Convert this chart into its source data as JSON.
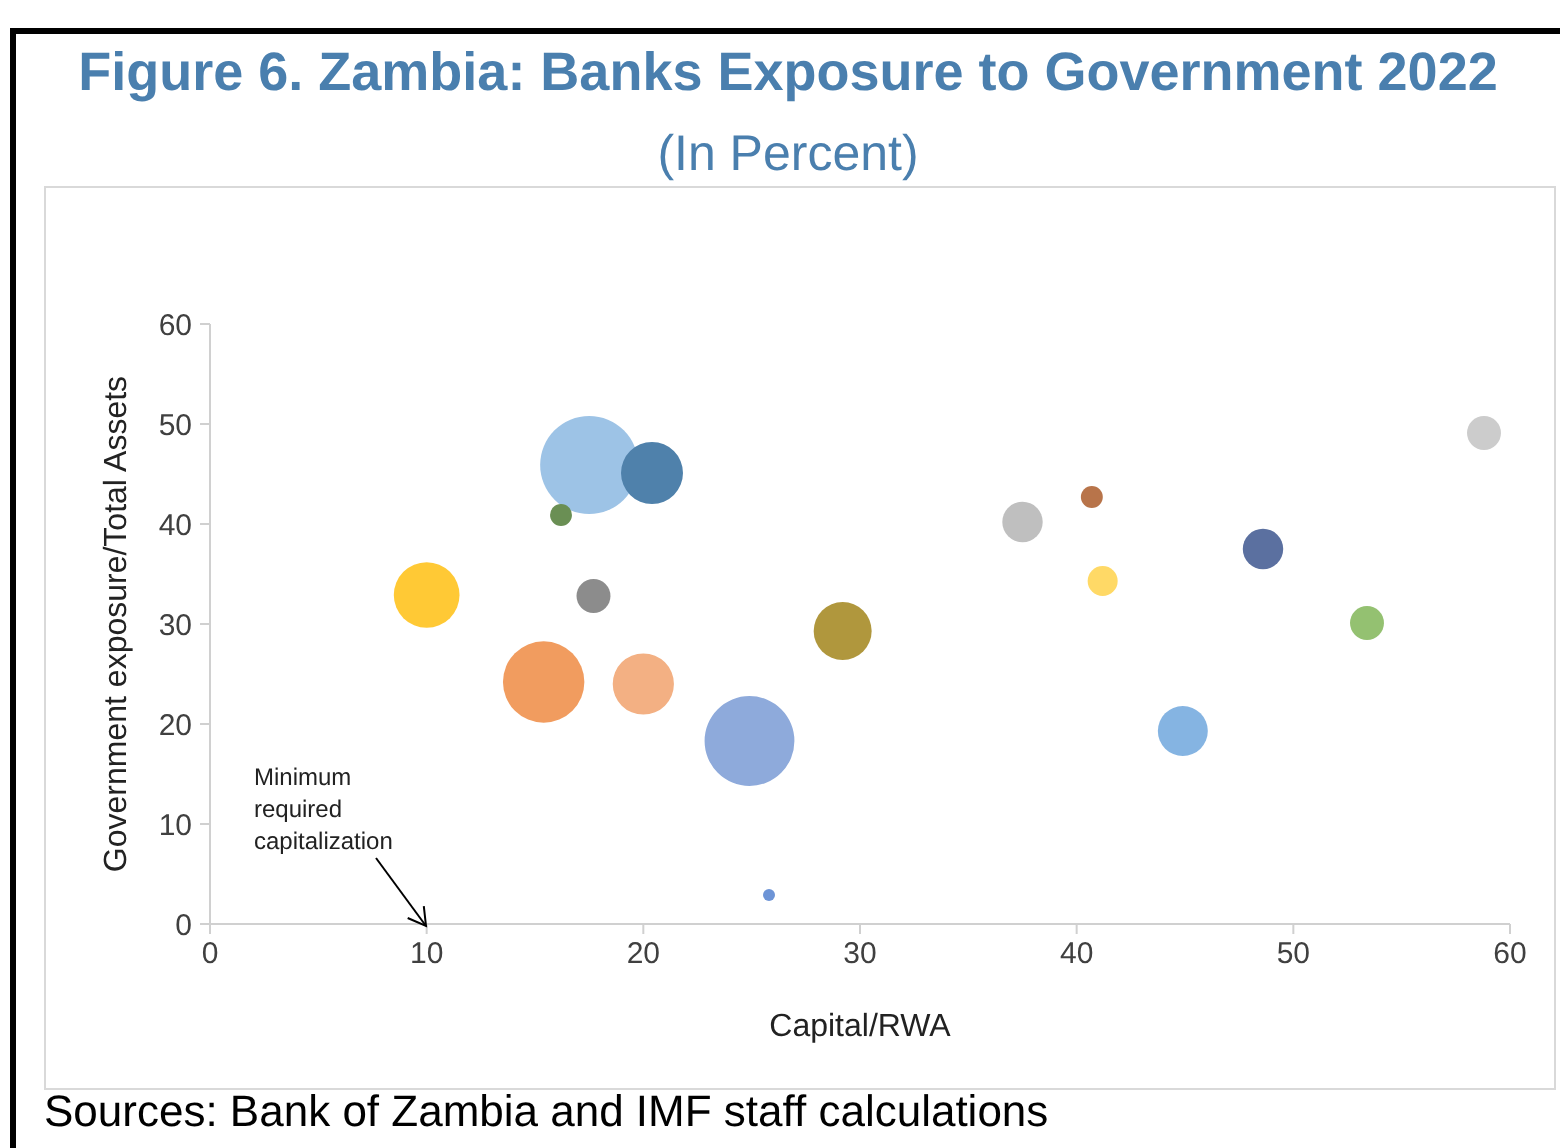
{
  "chart_data": {
    "type": "bubble",
    "title": "Figure 6. Zambia: Banks Exposure to Government 2022",
    "subtitle": "(In Percent)",
    "xlabel": "Capital/RWA",
    "ylabel": "Government exposure/Total Assets",
    "x": [
      10.0,
      15.4,
      20.0,
      17.5,
      20.4,
      16.2,
      17.7,
      24.9,
      25.8,
      29.2,
      37.5,
      40.7,
      41.2,
      44.9,
      48.6,
      53.4,
      58.8
    ],
    "values": [
      32.9,
      24.2,
      24.0,
      45.9,
      45.1,
      40.9,
      32.8,
      18.3,
      2.9,
      29.3,
      40.2,
      42.7,
      34.3,
      19.3,
      37.5,
      30.1,
      49.1
    ],
    "sizes": [
      0.45,
      0.69,
      0.39,
      1,
      0.4,
      0.05,
      0.12,
      0.84,
      0.015,
      0.35,
      0.17,
      0.05,
      0.094,
      0.26,
      0.17,
      0.12,
      0.12
    ],
    "colors": [
      "#ffc935",
      "#f19c5f",
      "#f3b083",
      "#9dc3e6",
      "#4f81ab",
      "#6a8f54",
      "#8c8c8c",
      "#8eaadb",
      "#6d94d6",
      "#b0973d",
      "#bfbfbf",
      "#b8744a",
      "#ffd966",
      "#85b4e2",
      "#5b70a0",
      "#94c171",
      "#cccccc"
    ],
    "xlim": [
      0,
      60
    ],
    "xticks": [
      0,
      10,
      20,
      30,
      40,
      50,
      60
    ],
    "ylim": [
      0,
      60
    ],
    "yticks": [
      0,
      10,
      20,
      30,
      40,
      50,
      60
    ],
    "annotations": [
      "Minimum required capitalization",
      "Sources: Bank of Zambia and IMF staff calculations"
    ]
  }
}
